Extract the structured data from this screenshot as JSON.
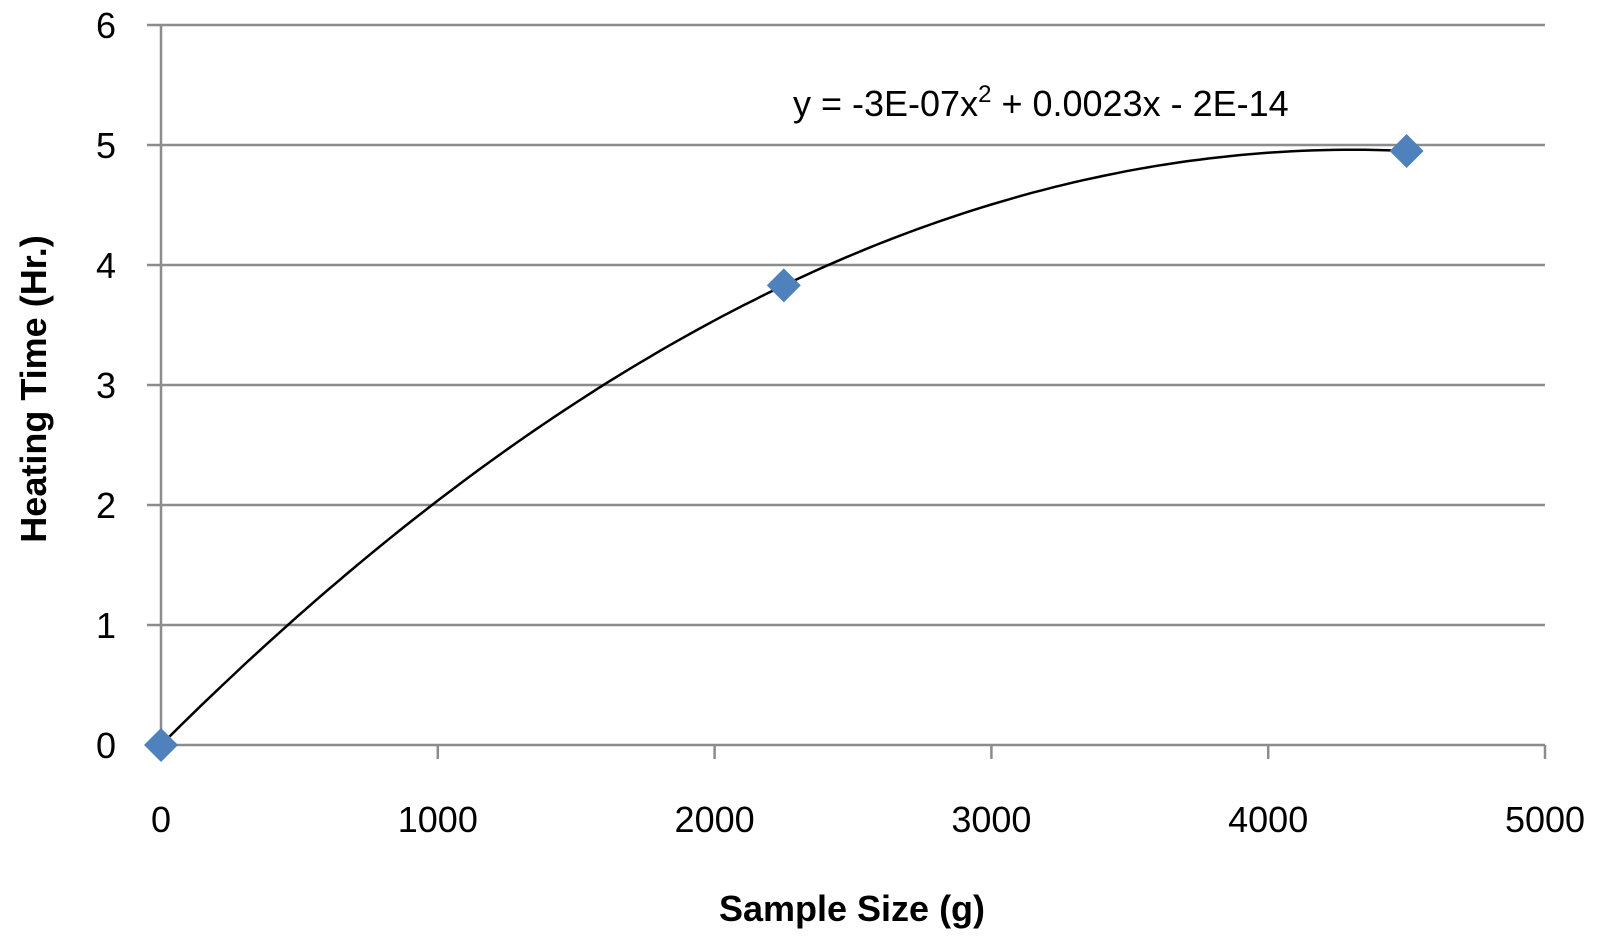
{
  "chart_data": {
    "type": "scatter",
    "xlabel": "Sample Size (g)",
    "ylabel": "Heating Time (Hr.)",
    "xlim": [
      0,
      5000
    ],
    "ylim": [
      0,
      6
    ],
    "x_ticks": [
      "0",
      "1000",
      "2000",
      "3000",
      "4000",
      "5000"
    ],
    "y_ticks": [
      "0",
      "1",
      "2",
      "3",
      "4",
      "5",
      "6"
    ],
    "grid": "horizontal",
    "marker": "diamond",
    "marker_color": "#4F81BD",
    "series": [
      {
        "x": [
          0,
          2250,
          4500
        ],
        "y": [
          0,
          3.83,
          4.95
        ]
      }
    ],
    "trendline": {
      "type": "polynomial",
      "coefficients": [
        -3e-07,
        0.0023,
        -2e-14
      ],
      "equation": {
        "prefix": "y = -3E-07x",
        "superscript": "2",
        "suffix": " + 0.0023x - 2E-14"
      }
    }
  }
}
